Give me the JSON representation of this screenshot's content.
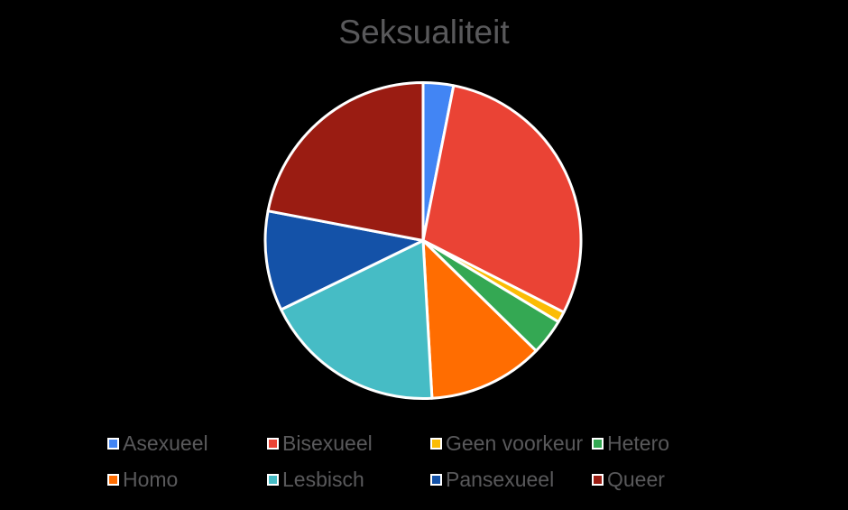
{
  "title": "Seksualiteit",
  "styles": {
    "background_color": "#000000",
    "text_color": "#59595B",
    "slice_border_color": "#FFFFFF"
  },
  "chart_data": {
    "type": "pie",
    "title": "Seksualiteit",
    "labels": [
      "Asexueel",
      "Bisexueel",
      "Geen voorkeur",
      "Hetero",
      "Homo",
      "Lesbisch",
      "Pansexueel",
      "Queer"
    ],
    "values": [
      3.1,
      29.4,
      1.1,
      3.7,
      11.8,
      18.7,
      10.2,
      22.0
    ],
    "values_unit": "percent",
    "note": "no data labels shown in chart; values estimated from slice angles",
    "colors": [
      "#4285F4",
      "#EA4335",
      "#FBBC04",
      "#34A853",
      "#FF6D01",
      "#46BCC5",
      "#1452A8",
      "#9A1C12"
    ],
    "start_angle_deg": 0,
    "direction": "clockwise",
    "slice_border_color": "#FFFFFF",
    "legend_position": "bottom",
    "legend_rows": 2,
    "legend_columns": 4
  },
  "legend": {
    "items": [
      {
        "label": "Asexueel",
        "color": "#4285F4"
      },
      {
        "label": "Bisexueel",
        "color": "#EA4335"
      },
      {
        "label": "Geen voorkeur",
        "color": "#FBBC04"
      },
      {
        "label": "Hetero",
        "color": "#34A853"
      },
      {
        "label": "Homo",
        "color": "#FF6D01"
      },
      {
        "label": "Lesbisch",
        "color": "#46BCC5"
      },
      {
        "label": "Pansexueel",
        "color": "#1452A8"
      },
      {
        "label": "Queer",
        "color": "#9A1C12"
      }
    ]
  }
}
